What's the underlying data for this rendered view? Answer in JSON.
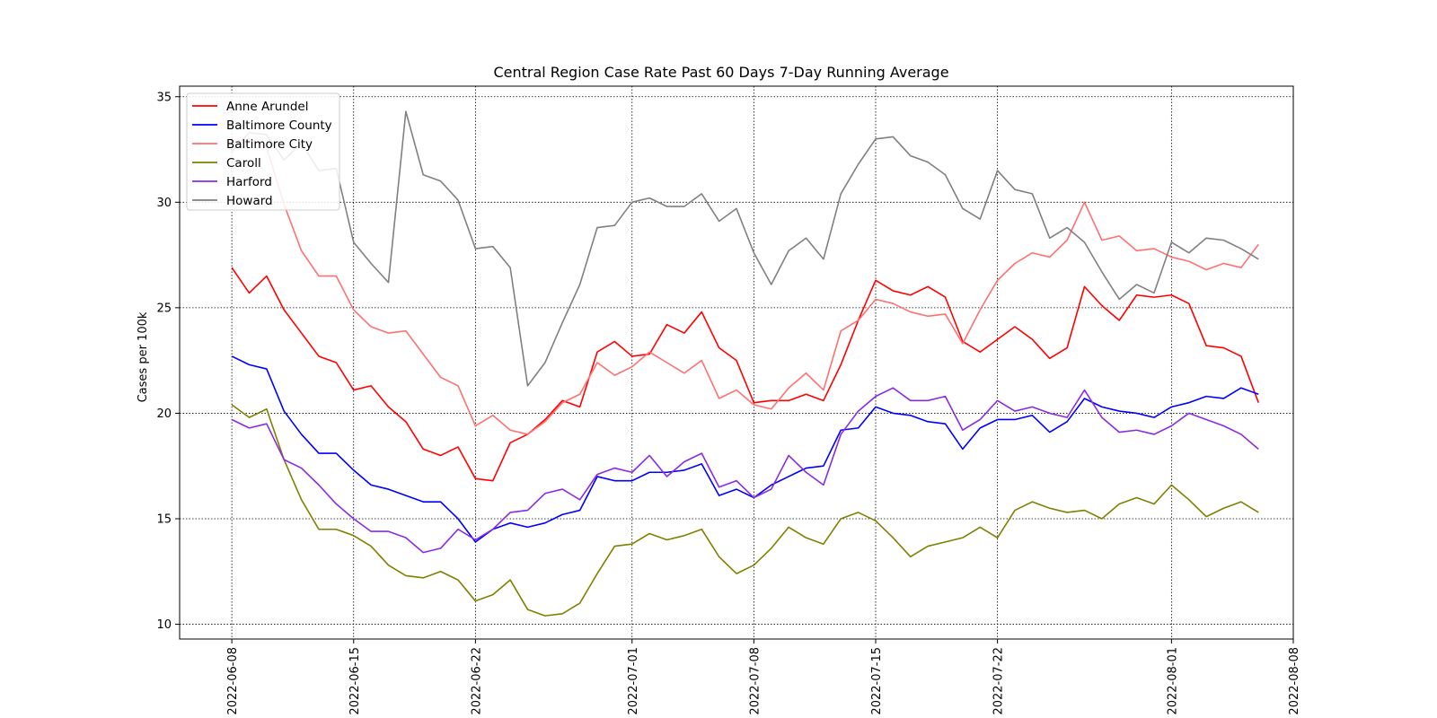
{
  "chart_data": {
    "type": "line",
    "title": "Central Region Case Rate  Past 60 Days 7-Day Running Average",
    "xlabel": "",
    "ylabel": "Cases per 100k",
    "x_start": "2022-06-08",
    "x_tick_labels": [
      "2022-06-08",
      "2022-06-15",
      "2022-06-22",
      "2022-07-01",
      "2022-07-08",
      "2022-07-15",
      "2022-07-22",
      "2022-08-01",
      "2022-08-08"
    ],
    "y_tick_labels": [
      "10",
      "15",
      "20",
      "25",
      "30",
      "35"
    ],
    "xlim": [
      "2022-06-05",
      "2022-08-08"
    ],
    "ylim": [
      9.3,
      35.5
    ],
    "grid": true,
    "legend_position": "top-left",
    "series": [
      {
        "name": "Anne Arundel",
        "color": "#ff0000",
        "values": [
          26.9,
          25.7,
          26.5,
          24.9,
          23.8,
          22.7,
          22.4,
          21.1,
          21.3,
          20.3,
          19.6,
          18.3,
          18.0,
          18.4,
          16.9,
          16.8,
          18.6,
          19.0,
          19.7,
          20.6,
          20.3,
          22.9,
          23.4,
          22.7,
          22.8,
          24.2,
          23.8,
          24.8,
          23.1,
          22.5,
          20.5,
          20.6,
          20.6,
          20.9,
          20.6,
          22.3,
          24.4,
          26.3,
          25.8,
          25.6,
          26.0,
          25.5,
          23.4,
          22.9,
          23.5,
          24.1,
          23.5,
          22.6,
          23.1,
          26.0,
          25.1,
          24.4,
          25.6,
          25.5,
          25.6,
          25.2,
          23.2,
          23.1,
          22.7,
          20.5
        ]
      },
      {
        "name": "Baltimore County",
        "color": "#0000ff",
        "values": [
          22.7,
          22.3,
          22.1,
          20.1,
          19.0,
          18.1,
          18.1,
          17.3,
          16.6,
          16.4,
          16.1,
          15.8,
          15.8,
          15.0,
          13.9,
          14.5,
          14.8,
          14.6,
          14.8,
          15.2,
          15.4,
          17.0,
          16.8,
          16.8,
          17.2,
          17.2,
          17.3,
          17.6,
          16.1,
          16.4,
          16.0,
          16.6,
          17.0,
          17.4,
          17.5,
          19.2,
          19.3,
          20.3,
          20.0,
          19.9,
          19.6,
          19.5,
          18.3,
          19.3,
          19.7,
          19.7,
          19.9,
          19.1,
          19.6,
          20.7,
          20.3,
          20.1,
          20.0,
          19.8,
          20.3,
          20.5,
          20.8,
          20.7,
          21.2,
          20.9
        ]
      },
      {
        "name": "Baltimore City",
        "color": "#ff7070",
        "values": [
          32.8,
          33.0,
          32.6,
          29.9,
          27.7,
          26.5,
          26.5,
          24.9,
          24.1,
          23.8,
          23.9,
          22.8,
          21.7,
          21.3,
          19.4,
          19.9,
          19.2,
          19.0,
          19.6,
          20.5,
          20.9,
          22.4,
          21.8,
          22.2,
          22.9,
          22.4,
          21.9,
          22.5,
          20.7,
          21.1,
          20.4,
          20.2,
          21.2,
          21.9,
          21.1,
          23.9,
          24.4,
          25.4,
          25.2,
          24.8,
          24.6,
          24.7,
          23.3,
          24.9,
          26.3,
          27.1,
          27.6,
          27.4,
          28.2,
          30.0,
          28.2,
          28.4,
          27.7,
          27.8,
          27.4,
          27.2,
          26.8,
          27.1,
          26.9,
          28.0
        ]
      },
      {
        "name": "Caroll",
        "color": "#808000",
        "values": [
          20.4,
          19.8,
          20.2,
          17.8,
          15.9,
          14.5,
          14.5,
          14.2,
          13.7,
          12.8,
          12.3,
          12.2,
          12.5,
          12.1,
          11.1,
          11.4,
          12.1,
          10.7,
          10.4,
          10.5,
          11.0,
          12.4,
          13.7,
          13.8,
          14.3,
          14.0,
          14.2,
          14.5,
          13.2,
          12.4,
          12.8,
          13.6,
          14.6,
          14.1,
          13.8,
          15.0,
          15.3,
          14.9,
          14.1,
          13.2,
          13.7,
          13.9,
          14.1,
          14.6,
          14.1,
          15.4,
          15.8,
          15.5,
          15.3,
          15.4,
          15.0,
          15.7,
          16.0,
          15.7,
          16.6,
          15.9,
          15.1,
          15.5,
          15.8,
          15.3
        ]
      },
      {
        "name": "Harford",
        "color": "#8a2be2",
        "values": [
          19.7,
          19.3,
          19.5,
          17.8,
          17.4,
          16.6,
          15.7,
          15.0,
          14.4,
          14.4,
          14.1,
          13.4,
          13.6,
          14.5,
          14.0,
          14.5,
          15.3,
          15.4,
          16.2,
          16.4,
          15.9,
          17.1,
          17.4,
          17.2,
          18.0,
          17.0,
          17.7,
          18.1,
          16.5,
          16.8,
          16.0,
          16.4,
          18.0,
          17.2,
          16.6,
          19.0,
          20.1,
          20.8,
          21.2,
          20.6,
          20.6,
          20.8,
          19.2,
          19.7,
          20.6,
          20.1,
          20.3,
          20.0,
          19.8,
          21.1,
          19.8,
          19.1,
          19.2,
          19.0,
          19.4,
          20.0,
          19.7,
          19.4,
          19.0,
          18.3
        ]
      },
      {
        "name": "Howard",
        "color": "#808080",
        "values": [
          32.4,
          33.3,
          33.2,
          32.0,
          32.8,
          31.5,
          31.6,
          28.1,
          27.1,
          26.2,
          34.3,
          31.3,
          31.0,
          30.1,
          27.8,
          27.9,
          26.9,
          21.3,
          22.4,
          24.3,
          26.1,
          28.8,
          28.9,
          30.0,
          30.2,
          29.8,
          29.8,
          30.4,
          29.1,
          29.7,
          27.6,
          26.1,
          27.7,
          28.3,
          27.3,
          30.4,
          31.8,
          33.0,
          33.1,
          32.2,
          31.9,
          31.3,
          29.7,
          29.2,
          31.5,
          30.6,
          30.4,
          28.3,
          28.8,
          28.1,
          26.7,
          25.4,
          26.1,
          25.7,
          28.1,
          27.6,
          28.3,
          28.2,
          27.8,
          27.3
        ]
      }
    ]
  }
}
